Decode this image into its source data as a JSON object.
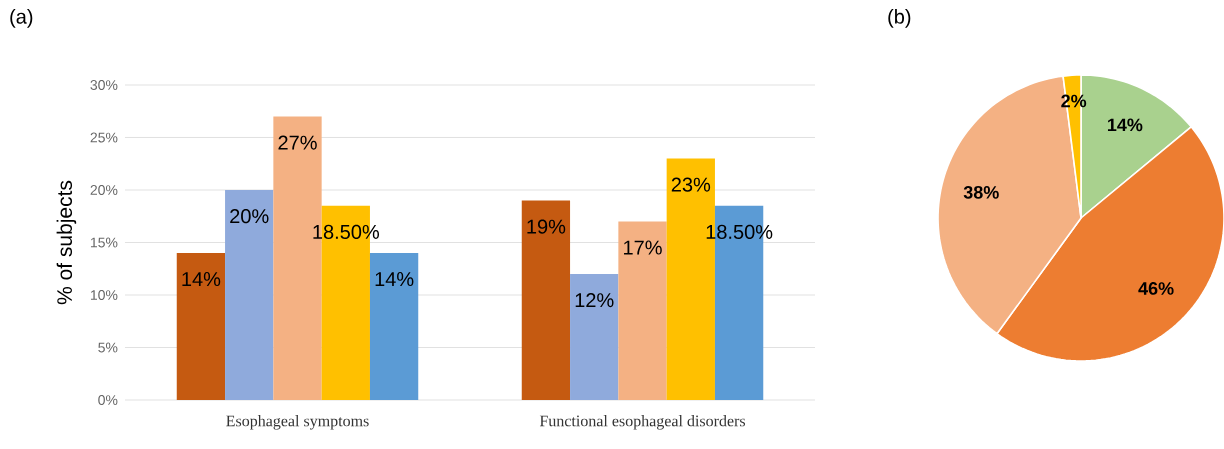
{
  "chart_data": [
    {
      "type": "bar",
      "title": "(a)",
      "ylabel": "% of subjects",
      "categories": [
        "Esophageal symptoms",
        "Functional esophageal disorders"
      ],
      "series": [
        {
          "color": "#c55a11",
          "values": [
            14,
            19
          ],
          "value_labels": [
            "14%",
            "19%"
          ]
        },
        {
          "color": "#8faadc",
          "values": [
            20,
            12
          ],
          "value_labels": [
            "20%",
            "12%"
          ]
        },
        {
          "color": "#f4b183",
          "values": [
            27,
            17
          ],
          "value_labels": [
            "27%",
            "17%"
          ]
        },
        {
          "color": "#ffc000",
          "values": [
            18.5,
            23
          ],
          "value_labels": [
            "18.50%",
            "23%"
          ]
        },
        {
          "color": "#5b9bd5",
          "values": [
            14,
            18.5
          ],
          "value_labels": [
            "14%",
            "18.50%"
          ]
        }
      ],
      "ylim": [
        0,
        30
      ],
      "yticks": [
        {
          "value": 0,
          "label": "0%"
        },
        {
          "value": 5,
          "label": "5%"
        },
        {
          "value": 10,
          "label": "10%"
        },
        {
          "value": 15,
          "label": "15%"
        },
        {
          "value": 20,
          "label": "20%"
        },
        {
          "value": 25,
          "label": "25%"
        },
        {
          "value": 30,
          "label": "30%"
        }
      ],
      "grid": "y"
    },
    {
      "type": "pie",
      "title": "(b)",
      "categories": [
        null,
        null,
        null,
        null
      ],
      "values": [
        14,
        46,
        38,
        2
      ],
      "colors": [
        "#a9d18e",
        "#ed7d31",
        "#f4b183",
        "#ffc000"
      ],
      "value_labels": [
        "14%",
        "46%",
        "38%",
        "2%"
      ]
    }
  ]
}
